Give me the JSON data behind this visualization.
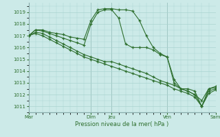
{
  "xlabel": "Pression niveau de la mer( hPa )",
  "background_color": "#cceae8",
  "grid_color": "#aad4d0",
  "line_color": "#2d6e2d",
  "ylim": [
    1010.5,
    1019.8
  ],
  "yticks": [
    1011,
    1012,
    1013,
    1014,
    1015,
    1016,
    1017,
    1018,
    1019
  ],
  "day_labels": [
    "Mar",
    "Dim",
    "Jeu",
    "Ven",
    "Sam"
  ],
  "day_positions": [
    0,
    9,
    12,
    20,
    27
  ],
  "xlim": [
    0,
    27
  ],
  "lines": [
    {
      "x": [
        0,
        1,
        2,
        3,
        4,
        5,
        6,
        7,
        8,
        9,
        10,
        11,
        12,
        13,
        14,
        15,
        16,
        17,
        18,
        19,
        20,
        21,
        22,
        23,
        24,
        25,
        26,
        27
      ],
      "y": [
        1017.0,
        1017.5,
        1017.5,
        1017.3,
        1017.2,
        1017.1,
        1016.9,
        1016.8,
        1016.7,
        1018.3,
        1019.2,
        1019.3,
        1019.3,
        1019.2,
        1019.2,
        1019.1,
        1018.3,
        1017.0,
        1016.0,
        1015.5,
        1015.2,
        1013.3,
        1012.5,
        1012.5,
        1012.3,
        1011.0,
        1012.5,
        1012.7
      ]
    },
    {
      "x": [
        0,
        1,
        2,
        3,
        4,
        5,
        6,
        7,
        8,
        9,
        10,
        11,
        12,
        13,
        14,
        15,
        16,
        17,
        18,
        19,
        20,
        21,
        22,
        23,
        24,
        25,
        26,
        27
      ],
      "y": [
        1017.0,
        1017.5,
        1017.4,
        1017.2,
        1017.0,
        1016.8,
        1016.6,
        1016.4,
        1016.2,
        1018.0,
        1019.0,
        1019.2,
        1019.2,
        1018.5,
        1016.3,
        1016.0,
        1016.0,
        1016.0,
        1015.8,
        1015.4,
        1015.2,
        1013.0,
        1012.5,
        1012.3,
        1012.0,
        1011.5,
        1012.5,
        1012.6
      ]
    },
    {
      "x": [
        0,
        1,
        2,
        3,
        4,
        5,
        6,
        7,
        8,
        9,
        10,
        11,
        12,
        13,
        14,
        15,
        16,
        17,
        18,
        19,
        20,
        21,
        22,
        23,
        24,
        25,
        26,
        27
      ],
      "y": [
        1017.0,
        1017.3,
        1017.2,
        1016.9,
        1016.6,
        1016.3,
        1016.0,
        1015.7,
        1015.4,
        1015.2,
        1015.0,
        1014.8,
        1014.8,
        1014.6,
        1014.4,
        1014.2,
        1014.0,
        1013.8,
        1013.5,
        1013.2,
        1013.0,
        1012.8,
        1012.5,
        1012.3,
        1012.0,
        1011.0,
        1012.3,
        1012.5
      ]
    },
    {
      "x": [
        0,
        1,
        2,
        3,
        4,
        5,
        6,
        7,
        8,
        9,
        10,
        11,
        12,
        13,
        14,
        15,
        16,
        17,
        18,
        19,
        20,
        21,
        22,
        23,
        24,
        25,
        26,
        27
      ],
      "y": [
        1017.0,
        1017.2,
        1017.0,
        1016.7,
        1016.4,
        1016.1,
        1015.8,
        1015.5,
        1015.2,
        1015.0,
        1014.8,
        1014.6,
        1014.4,
        1014.2,
        1014.0,
        1013.8,
        1013.6,
        1013.4,
        1013.2,
        1013.0,
        1012.8,
        1012.5,
        1012.3,
        1012.1,
        1011.8,
        1011.0,
        1012.1,
        1012.4
      ]
    }
  ]
}
